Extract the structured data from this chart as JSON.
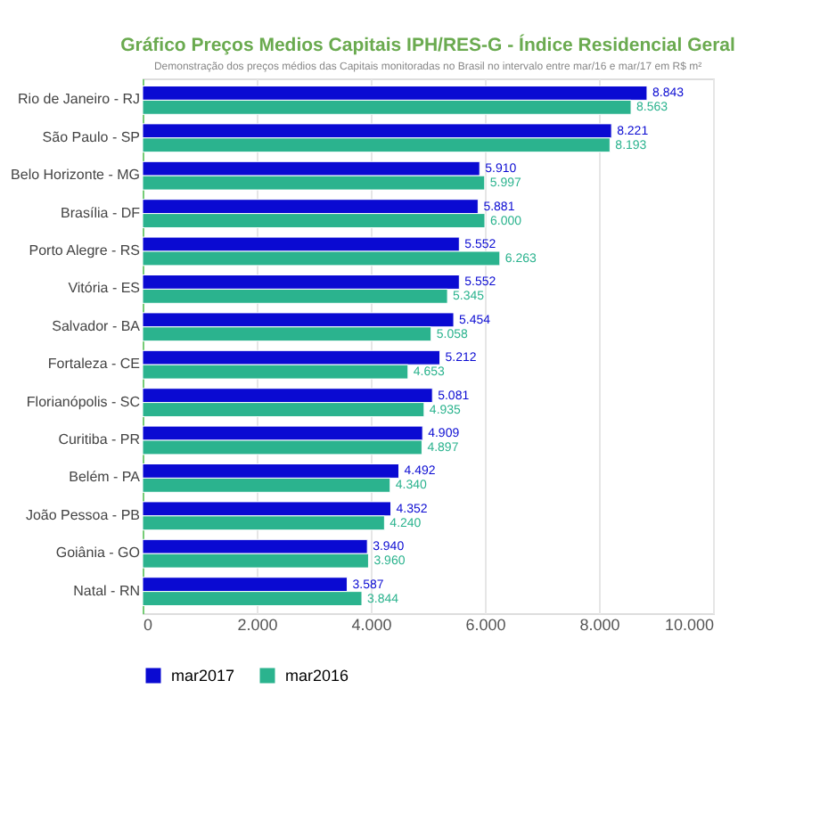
{
  "chart_data": {
    "type": "bar",
    "orientation": "horizontal",
    "title": "Gráfico Preços Medios Capitais IPH/RES-G - Índice Residencial Geral",
    "subtitle": "Demonstração dos preços médios das Capitais monitoradas no Brasil no intervalo entre mar/16 e mar/17 em R$ m²",
    "categories": [
      "Rio de Janeiro - RJ",
      "São Paulo - SP",
      "Belo Horizonte - MG",
      "Brasília - DF",
      "Porto Alegre - RS",
      "Vitória - ES",
      "Salvador - BA",
      "Fortaleza - CE",
      "Florianópolis - SC",
      "Curitiba - PR",
      "Belém - PA",
      "João Pessoa - PB",
      "Goiânia - GO",
      "Natal - RN"
    ],
    "series": [
      {
        "name": "mar2017",
        "color": "#0a0ad2",
        "values": [
          8843,
          8221,
          5910,
          5881,
          5552,
          5552,
          5454,
          5212,
          5081,
          4909,
          4492,
          4352,
          3940,
          3587
        ],
        "value_labels": [
          "8.843",
          "8.221",
          "5.910",
          "5.881",
          "5.552",
          "5.552",
          "5.454",
          "5.212",
          "5.081",
          "4.909",
          "4.492",
          "4.352",
          "3.940",
          "3.587"
        ]
      },
      {
        "name": "mar2016",
        "color": "#2bb38e",
        "values": [
          8563,
          8193,
          5997,
          6000,
          6263,
          5345,
          5058,
          4653,
          4935,
          4897,
          4340,
          4240,
          3960,
          3844
        ],
        "value_labels": [
          "8.563",
          "8.193",
          "5.997",
          "6.000",
          "6.263",
          "5.345",
          "5.058",
          "4.653",
          "4.935",
          "4.897",
          "4.340",
          "4.240",
          "3.960",
          "3.844"
        ]
      }
    ],
    "xlim": [
      0,
      10000
    ],
    "xticks": [
      {
        "value": 0,
        "label": "0"
      },
      {
        "value": 2000,
        "label": "2.000"
      },
      {
        "value": 4000,
        "label": "4.000"
      },
      {
        "value": 6000,
        "label": "6.000"
      },
      {
        "value": 8000,
        "label": "8.000"
      },
      {
        "value": 10000,
        "label": "10.000"
      }
    ],
    "grid": "x",
    "legend": "bottom left"
  }
}
